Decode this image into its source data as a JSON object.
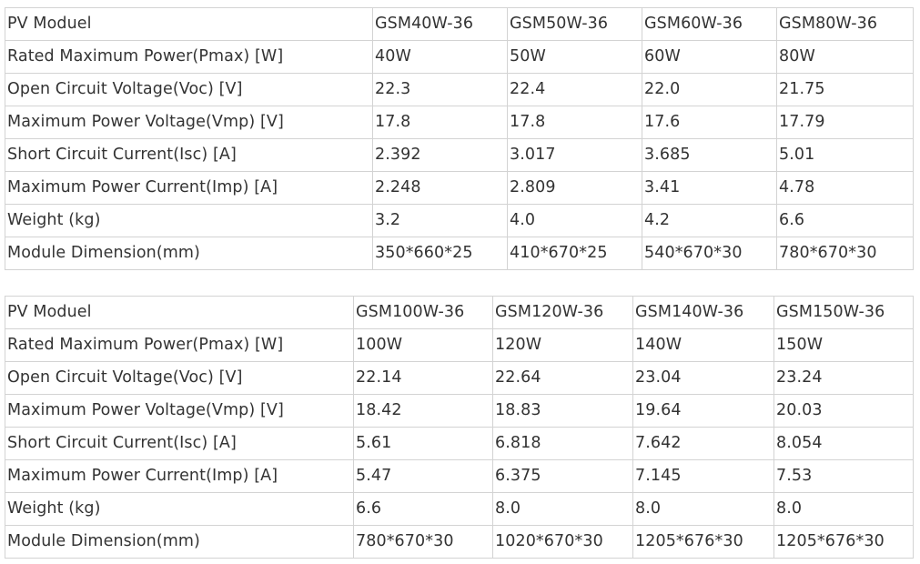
{
  "tables": [
    {
      "header": {
        "label": "PV Moduel",
        "models": [
          "GSM40W-36",
          "GSM50W-36",
          "GSM60W-36",
          "GSM80W-36"
        ]
      },
      "rows": [
        {
          "label": "Rated Maximum Power(Pmax) [W]",
          "values": [
            "40W",
            "50W",
            "60W",
            "80W"
          ]
        },
        {
          "label": "Open Circuit Voltage(Voc) [V]",
          "values": [
            "22.3",
            "22.4",
            "22.0",
            "21.75"
          ]
        },
        {
          "label": "Maximum Power Voltage(Vmp) [V]",
          "values": [
            "17.8",
            "17.8",
            "17.6",
            "17.79"
          ]
        },
        {
          "label": "Short Circuit Current(Isc) [A]",
          "values": [
            "2.392",
            "3.017",
            "3.685",
            "5.01"
          ]
        },
        {
          "label": "Maximum Power Current(Imp) [A]",
          "values": [
            "2.248",
            "2.809",
            "3.41",
            "4.78"
          ]
        },
        {
          "label": "Weight (kg)",
          "values": [
            "3.2",
            "4.0",
            "4.2",
            "6.6"
          ]
        },
        {
          "label": "Module Dimension(mm)",
          "values": [
            "350*660*25",
            "410*670*25",
            "540*670*30",
            "780*670*30"
          ]
        }
      ]
    },
    {
      "header": {
        "label": "PV Moduel",
        "models": [
          "GSM100W-36",
          "GSM120W-36",
          "GSM140W-36",
          "GSM150W-36"
        ]
      },
      "rows": [
        {
          "label": "Rated Maximum Power(Pmax) [W]",
          "values": [
            "100W",
            "120W",
            "140W",
            "150W"
          ]
        },
        {
          "label": "Open Circuit Voltage(Voc) [V]",
          "values": [
            "22.14",
            "22.64",
            "23.04",
            "23.24"
          ]
        },
        {
          "label": "Maximum Power Voltage(Vmp) [V]",
          "values": [
            "18.42",
            "18.83",
            "19.64",
            "20.03"
          ]
        },
        {
          "label": "Short Circuit Current(Isc) [A]",
          "values": [
            "5.61",
            "6.818",
            "7.642",
            "8.054"
          ]
        },
        {
          "label": "Maximum Power Current(Imp) [A]",
          "values": [
            "5.47",
            "6.375",
            "7.145",
            "7.53"
          ]
        },
        {
          "label": "Weight (kg)",
          "values": [
            "6.6",
            "8.0",
            "8.0",
            "8.0"
          ]
        },
        {
          "label": "Module Dimension(mm)",
          "values": [
            "780*670*30",
            "1020*670*30",
            "1205*676*30",
            "1205*676*30"
          ]
        }
      ]
    }
  ]
}
